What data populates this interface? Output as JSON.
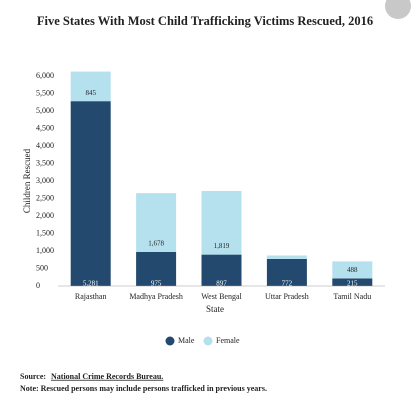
{
  "chart_data": {
    "type": "stacked-bar",
    "title": "Five States With Most Child Trafficking Victims Rescued, 2016",
    "x_label": "State",
    "y_label": "Children Rescued",
    "categories": [
      "Rajasthan",
      "Madhya Pradesh",
      "West Bengal",
      "Uttar Pradesh",
      "Tamil Nadu"
    ],
    "series": [
      {
        "name": "Male",
        "color": "#234a6e",
        "values": [
          5281,
          975,
          897,
          772,
          215
        ],
        "value_labels": [
          "5,281",
          "975",
          "897",
          "772",
          "215"
        ]
      },
      {
        "name": "Female",
        "color": "#b5e1ef",
        "values": [
          845,
          1678,
          1819,
          100,
          488
        ],
        "value_labels": [
          "845",
          "1,678",
          "1,819",
          null,
          "488"
        ]
      }
    ],
    "ylim": [
      0,
      6000
    ],
    "yticks": [
      0,
      500,
      {
        "value": 1000,
        "label": "1,000"
      },
      {
        "value": 1500,
        "label": "1,500"
      },
      {
        "value": 2000,
        "label": "2,000"
      },
      {
        "value": 2500,
        "label": "2,500"
      },
      {
        "value": 3000,
        "label": "3,000"
      },
      {
        "value": 3500,
        "label": "3,500"
      },
      {
        "value": 4000,
        "label": "4,000"
      },
      {
        "value": 4500,
        "label": "4,500"
      },
      {
        "value": 5000,
        "label": "5,000"
      },
      {
        "value": 5500,
        "label": "5,500"
      },
      {
        "value": 6000,
        "label": "6,000"
      }
    ],
    "grid": false,
    "legend": "bottom",
    "source_label": "Source:",
    "source": "National Crime Records Bureau.",
    "note": "Note: Rescued persons may include persons trafficked in previous years."
  }
}
